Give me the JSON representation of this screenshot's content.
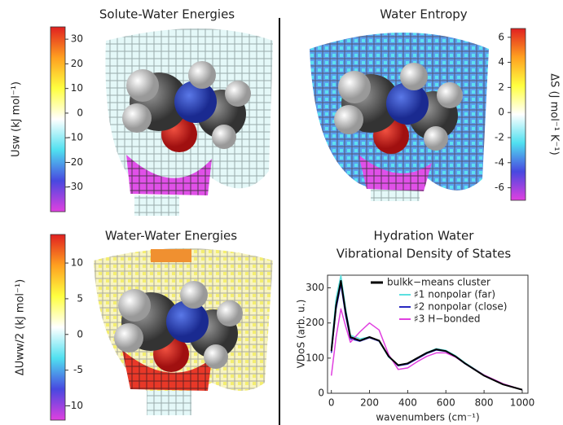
{
  "chart_data": [
    {
      "type": "colorbar",
      "title": "Solute-Water Energies",
      "label": "Usw (kJ mol⁻¹)",
      "lim": [
        -40,
        35
      ],
      "ticks": [
        30,
        20,
        10,
        0,
        -10,
        -20,
        -30
      ],
      "colors": [
        "#e040e0",
        "#4848e0",
        "#50e0f0",
        "#ffffff",
        "#ffff40",
        "#ffa020",
        "#e02020"
      ]
    },
    {
      "type": "colorbar",
      "title": "Water Entropy",
      "label": "ΔS (J mol⁻¹ K⁻¹)",
      "lim": [
        -7,
        6.7
      ],
      "ticks": [
        6,
        4,
        2,
        0,
        -2,
        -4,
        -6
      ],
      "colors": [
        "#e040e0",
        "#4848e0",
        "#50e0f0",
        "#ffffff",
        "#ffff40",
        "#ffa020",
        "#e02020"
      ]
    },
    {
      "type": "colorbar",
      "title": "Water-Water Energies",
      "label": "ΔUww/2 (kJ mol⁻¹)",
      "lim": [
        -12,
        14
      ],
      "ticks": [
        10,
        5,
        0,
        -5,
        -10
      ],
      "colors": [
        "#e040e0",
        "#4848e0",
        "#50e0f0",
        "#ffffff",
        "#ffff40",
        "#ffa020",
        "#e02020"
      ]
    },
    {
      "type": "line",
      "title": "Hydration Water",
      "subtitle": "Vibrational Density of States",
      "xlabel": "wavenumbers (cm⁻¹)",
      "ylabel": "VDoS (arb. u.)",
      "legend_title": "k−means cluster",
      "x": [
        0,
        25,
        50,
        75,
        100,
        150,
        200,
        250,
        300,
        350,
        400,
        450,
        500,
        550,
        600,
        650,
        700,
        800,
        900,
        1000
      ],
      "series": [
        {
          "name": "bulk",
          "color": "#000000",
          "values": [
            120,
            250,
            320,
            230,
            160,
            150,
            160,
            150,
            105,
            80,
            85,
            100,
            115,
            125,
            120,
            105,
            85,
            50,
            25,
            10
          ]
        },
        {
          "name": "♯1 nonpolar (far)",
          "color": "#5ce0e0",
          "values": [
            130,
            270,
            335,
            240,
            165,
            155,
            160,
            148,
            103,
            80,
            85,
            100,
            116,
            127,
            122,
            107,
            87,
            52,
            26,
            10
          ]
        },
        {
          "name": "♯2 nonpolar (close)",
          "color": "#2828c0",
          "values": [
            115,
            240,
            310,
            220,
            155,
            148,
            158,
            148,
            105,
            78,
            83,
            98,
            113,
            123,
            119,
            104,
            84,
            50,
            25,
            10
          ]
        },
        {
          "name": "♯3 H−bonded",
          "color": "#e040e0",
          "values": [
            50,
            160,
            240,
            190,
            145,
            175,
            200,
            180,
            110,
            68,
            72,
            90,
            105,
            115,
            115,
            103,
            85,
            52,
            27,
            10
          ]
        }
      ],
      "xlim": [
        -20,
        1030
      ],
      "ylim": [
        0,
        336
      ],
      "xticks": [
        0,
        200,
        400,
        600,
        800,
        1000
      ],
      "yticks": [
        0,
        100,
        200,
        300
      ]
    }
  ]
}
